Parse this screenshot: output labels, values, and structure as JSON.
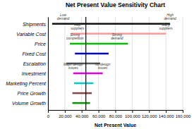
{
  "chart_data": {
    "type": "range",
    "orientation": "horizontal",
    "title": "Net Present Value Sensitivity Chart",
    "xlabel": "Net Present Value",
    "xlim": [
      0,
      160000
    ],
    "xticks": [
      0,
      {
        "value": 20000,
        "label": "20,000"
      },
      {
        "value": 40000,
        "label": "40,000"
      },
      {
        "value": 60000,
        "label": "60,000"
      },
      {
        "value": 80000,
        "label": "80,000"
      },
      {
        "value": 100000,
        "label": "100,000"
      },
      {
        "value": 120000,
        "label": "120,000"
      },
      {
        "value": 140000,
        "label": "140,000"
      },
      {
        "value": 160000,
        "label": "160,000"
      }
    ],
    "grid": true,
    "baseline": 45000,
    "categories": [
      "Shipments",
      "Variable Cost",
      "Price",
      "Fixed Cost",
      "Escalation",
      "Investment",
      "Marketing Percent",
      "Price Growth",
      "Volume Growth"
    ],
    "low": [
      5000,
      28000,
      26000,
      32000,
      22000,
      30000,
      31000,
      29000,
      29000
    ],
    "high": [
      145000,
      140000,
      95000,
      72000,
      62000,
      65000,
      54000,
      52000,
      50000
    ],
    "colors": [
      "#111111",
      "#ff9999",
      "#00bb00",
      "#0000cc",
      "#555555",
      "#dd00dd",
      "#00cccc",
      "#884444",
      "#009900"
    ],
    "annotations": [
      {
        "category": "Shipments",
        "text": "Low\ndemand",
        "x": 18000
      },
      {
        "category": "Shipments",
        "text": "High\ndemand",
        "x": 145000
      },
      {
        "category": "Variable Cost",
        "text": "Few\nsuppliers",
        "x": 35000
      },
      {
        "category": "Variable Cost",
        "text": "Many\nsuppliers",
        "x": 140000
      },
      {
        "category": "Price",
        "text": "Strong\ncompetition",
        "x": 32000
      },
      {
        "category": "Price",
        "text": "Strong\ndemand",
        "x": 82000
      },
      {
        "category": "Investment",
        "text": "Major design\nissues",
        "x": 30000
      },
      {
        "category": "Investment",
        "text": "No design\nissues",
        "x": 65000
      }
    ]
  }
}
